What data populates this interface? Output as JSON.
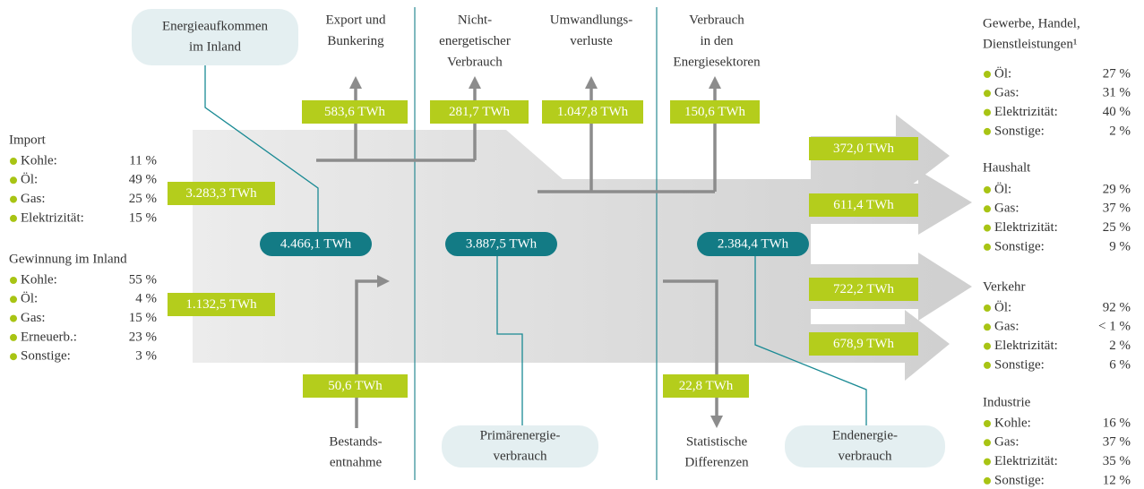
{
  "sources": [
    {
      "title": "Import",
      "items": [
        {
          "label": "Kohle:",
          "share": "11 %"
        },
        {
          "label": "Öl:",
          "share": "49 %"
        },
        {
          "label": "Gas:",
          "share": "25 %"
        },
        {
          "label": "Elektrizität:",
          "share": "15 %"
        }
      ]
    },
    {
      "title": "Gewinnung im Inland",
      "items": [
        {
          "label": "Kohle:",
          "share": "55 %"
        },
        {
          "label": "Öl:",
          "share": "4 %"
        },
        {
          "label": "Gas:",
          "share": "15 %"
        },
        {
          "label": "Erneuerb.:",
          "share": "23 %"
        },
        {
          "label": "Sonstige:",
          "share": "3 %"
        }
      ]
    }
  ],
  "sectors": [
    {
      "title_lines": [
        "Gewerbe, Handel,",
        "Dienstleistungen¹"
      ],
      "items": [
        {
          "label": "Öl:",
          "share": "27 %"
        },
        {
          "label": "Gas:",
          "share": "31 %"
        },
        {
          "label": "Elektrizität:",
          "share": "40 %"
        },
        {
          "label": "Sonstige:",
          "share": "2 %"
        }
      ]
    },
    {
      "title_lines": [
        "Haushalt"
      ],
      "items": [
        {
          "label": "Öl:",
          "share": "29 %"
        },
        {
          "label": "Gas:",
          "share": "37 %"
        },
        {
          "label": "Elektrizität:",
          "share": "25 %"
        },
        {
          "label": "Sonstige:",
          "share": "9 %"
        }
      ]
    },
    {
      "title_lines": [
        "Verkehr"
      ],
      "items": [
        {
          "label": "Öl:",
          "share": "92 %"
        },
        {
          "label": "Gas:",
          "share": "< 1 %"
        },
        {
          "label": "Elektrizität:",
          "share": "2 %"
        },
        {
          "label": "Sonstige:",
          "share": "6 %"
        }
      ]
    },
    {
      "title_lines": [
        "Industrie"
      ],
      "items": [
        {
          "label": "Kohle:",
          "share": "16 %"
        },
        {
          "label": "Gas:",
          "share": "37 %"
        },
        {
          "label": "Elektrizität:",
          "share": "35 %"
        },
        {
          "label": "Sonstige:",
          "share": "12 %"
        }
      ]
    }
  ],
  "top_labels": [
    [
      "Export und",
      "Bunkering"
    ],
    [
      "Nicht-",
      "energetischer",
      "Verbrauch"
    ],
    [
      "Umwandlungs-",
      "verluste"
    ],
    [
      "Verbrauch",
      "in den",
      "Energiesektoren"
    ]
  ],
  "bottom_labels": [
    [
      "Bestands-",
      "entnahme"
    ],
    [
      "Statistische",
      "Differenzen"
    ]
  ],
  "bubbles": [
    [
      "Energieaufkommen",
      "im Inland"
    ],
    [
      "Primärenergie-",
      "verbrauch"
    ],
    [
      "Endenergie-",
      "verbrauch"
    ]
  ],
  "flow_values": [
    "583,6 TWh",
    "281,7 TWh",
    "1.047,8 TWh",
    "150,6 TWh",
    "3.283,3 TWh",
    "1.132,5 TWh",
    "50,6 TWh",
    "22,8 TWh",
    "372,0 TWh",
    "611,4 TWh",
    "722,2 TWh",
    "678,9 TWh"
  ],
  "totals": [
    "4.466,1 TWh",
    "3.887,5 TWh",
    "2.384,4 TWh"
  ]
}
